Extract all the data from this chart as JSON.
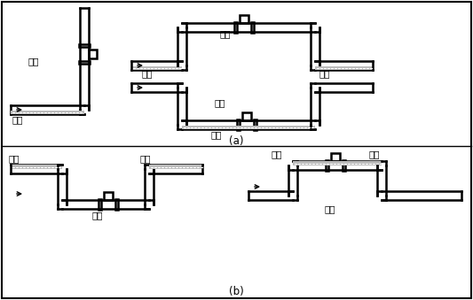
{
  "title_a": "(a)",
  "title_b": "(b)",
  "label_correct": "正确",
  "label_wrong": "错误",
  "label_liquid": "液体",
  "label_bubble": "气泡",
  "bg_color": "#ffffff",
  "line_color": "#000000"
}
